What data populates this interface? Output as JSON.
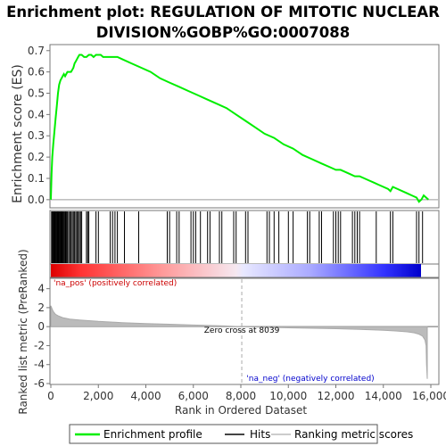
{
  "chart_data": {
    "type": "line",
    "title_line1": "Enrichment plot: REGULATION OF MITOTIC NUCLEAR",
    "title_line2": "DIVISION%GOBP%GO:0007088",
    "top_panel": {
      "ylabel": "Enrichment score (ES)",
      "ylim": [
        -0.03,
        0.72
      ],
      "yticks": [
        "0.0",
        "0.1",
        "0.2",
        "0.3",
        "0.4",
        "0.5",
        "0.6",
        "0.7"
      ],
      "series": [
        {
          "name": "Enrichment profile",
          "color": "#00ee00",
          "x": [
            0,
            30,
            60,
            100,
            150,
            200,
            250,
            300,
            350,
            400,
            450,
            500,
            550,
            600,
            650,
            700,
            750,
            800,
            850,
            900,
            950,
            1000,
            1050,
            1100,
            1150,
            1200,
            1300,
            1400,
            1500,
            1600,
            1700,
            1800,
            1900,
            2000,
            2100,
            2200,
            2400,
            2600,
            2800,
            3000,
            3400,
            3800,
            4200,
            4600,
            5000,
            5400,
            5800,
            6200,
            6600,
            7000,
            7400,
            7800,
            8200,
            8600,
            9000,
            9400,
            9800,
            10200,
            10600,
            11000,
            11400,
            11800,
            12000,
            12200,
            12400,
            12600,
            12800,
            13000,
            13200,
            13400,
            13600,
            13800,
            14000,
            14200,
            14300,
            14400,
            14600,
            14800,
            15000,
            15200,
            15400,
            15500,
            15600,
            15700,
            15900
          ],
          "y": [
            0.0,
            0.12,
            0.2,
            0.26,
            0.32,
            0.38,
            0.44,
            0.5,
            0.54,
            0.56,
            0.57,
            0.58,
            0.59,
            0.58,
            0.59,
            0.6,
            0.6,
            0.6,
            0.6,
            0.61,
            0.62,
            0.64,
            0.65,
            0.66,
            0.67,
            0.68,
            0.68,
            0.67,
            0.67,
            0.68,
            0.68,
            0.67,
            0.68,
            0.68,
            0.68,
            0.67,
            0.67,
            0.67,
            0.67,
            0.66,
            0.64,
            0.62,
            0.6,
            0.57,
            0.55,
            0.53,
            0.51,
            0.49,
            0.47,
            0.45,
            0.43,
            0.4,
            0.37,
            0.34,
            0.31,
            0.29,
            0.26,
            0.24,
            0.21,
            0.19,
            0.17,
            0.15,
            0.14,
            0.14,
            0.13,
            0.12,
            0.11,
            0.11,
            0.1,
            0.09,
            0.08,
            0.07,
            0.06,
            0.05,
            0.04,
            0.06,
            0.05,
            0.04,
            0.03,
            0.02,
            0.01,
            -0.01,
            0.0,
            0.02,
            0.0
          ]
        }
      ]
    },
    "hits": [
      30,
      60,
      90,
      120,
      150,
      180,
      210,
      240,
      270,
      300,
      330,
      360,
      390,
      420,
      450,
      480,
      510,
      540,
      580,
      620,
      660,
      700,
      750,
      800,
      850,
      900,
      950,
      1000,
      1050,
      1100,
      1150,
      1200,
      1250,
      1300,
      1500,
      1550,
      1600,
      1900,
      2000,
      2500,
      2600,
      2700,
      2800,
      3100,
      3700,
      4900,
      5000,
      5300,
      5400,
      5900,
      6000,
      6100,
      6300,
      6600,
      6700,
      7100,
      7200,
      7700,
      7800,
      8200,
      8300,
      9100,
      9200,
      9400,
      9600,
      10000,
      10200,
      10800,
      10900,
      11300,
      11400,
      11900,
      12000,
      12100,
      12200,
      12700,
      12800,
      12900,
      13000,
      13700,
      14300,
      14400,
      15400,
      15500,
      15650
    ],
    "ranked_panel": {
      "ylabel": "Ranked list metric (PreRanked)",
      "ylim": [
        -6,
        5
      ],
      "yticks": [
        "-6",
        "-4",
        "-2",
        "0",
        "2",
        "4"
      ],
      "x": [
        0,
        50,
        100,
        200,
        300,
        500,
        800,
        1200,
        2000,
        3000,
        4000,
        5000,
        6000,
        7000,
        8039,
        9000,
        10000,
        11000,
        12000,
        13000,
        14000,
        14500,
        15000,
        15300,
        15500,
        15650,
        15750,
        15800,
        15820,
        15850
      ],
      "y": [
        2.2,
        1.9,
        1.6,
        1.3,
        1.15,
        0.95,
        0.8,
        0.7,
        0.55,
        0.42,
        0.33,
        0.25,
        0.17,
        0.1,
        0.0,
        -0.07,
        -0.12,
        -0.17,
        -0.22,
        -0.28,
        -0.38,
        -0.45,
        -0.55,
        -0.65,
        -0.8,
        -1.0,
        -1.4,
        -2.0,
        -4.0,
        -5.5
      ],
      "pos_label": "'na_pos' (positively correlated)",
      "neg_label": "'na_neg' (negatively correlated)",
      "zero_cross_label": "Zero cross at 8039",
      "zero_cross": 8039
    },
    "xlabel": "Rank in Ordered Dataset",
    "xlim": [
      0,
      16300
    ],
    "xticks": [
      "0",
      "2,000",
      "4,000",
      "6,000",
      "8,000",
      "10,000",
      "12,000",
      "14,000",
      "16,000"
    ],
    "legend": {
      "position": "bottom",
      "items": [
        "Enrichment profile",
        "Hits",
        "Ranking metric scores"
      ]
    },
    "colors": {
      "enrichment": "#00ee00",
      "positive": "#ff0000",
      "negative": "#0000ff",
      "metric_fill": "#bbbbbb",
      "pos_label": "#cc0000",
      "neg_label": "#0000cc"
    }
  }
}
